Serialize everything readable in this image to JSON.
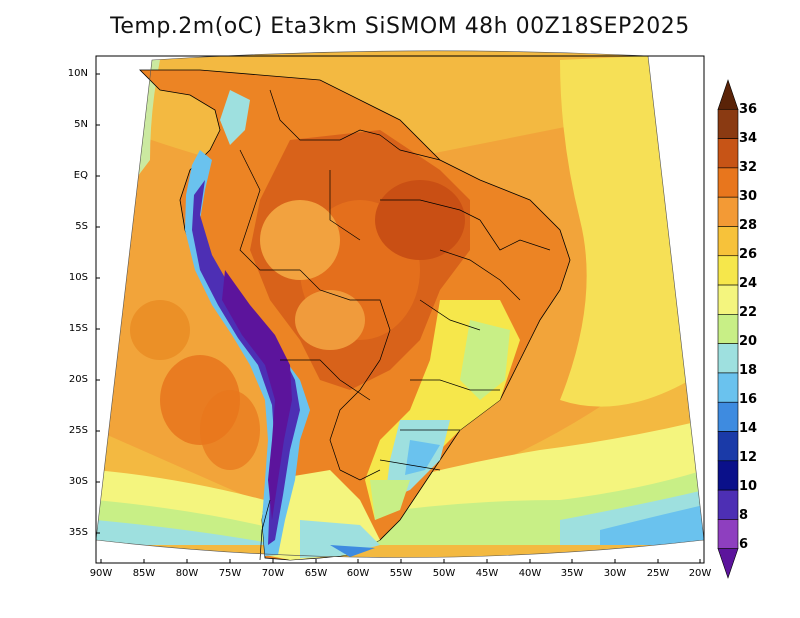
{
  "title": "Temp.2m(oC) Eta3km SiSMOM 48h 00Z18SEP2025",
  "lat_labels": [
    "10N",
    "5N",
    "EQ",
    "5S",
    "10S",
    "15S",
    "20S",
    "25S",
    "30S",
    "35S"
  ],
  "lon_labels": [
    "90W",
    "85W",
    "80W",
    "75W",
    "70W",
    "65W",
    "60W",
    "55W",
    "50W",
    "45W",
    "40W",
    "35W",
    "30W",
    "25W",
    "20W"
  ],
  "colorbar": {
    "unit": "oC",
    "labels": [
      "36",
      "34",
      "32",
      "30",
      "28",
      "26",
      "24",
      "22",
      "20",
      "18",
      "16",
      "14",
      "12",
      "10",
      "8",
      "6"
    ],
    "colors": [
      "#5a2308",
      "#8a3a12",
      "#c75416",
      "#e8761d",
      "#f39a35",
      "#f7c23a",
      "#f6e74b",
      "#f4f57e",
      "#c8ef86",
      "#9ee0df",
      "#6ac2ee",
      "#3e8be0",
      "#1a3aa8",
      "#0a108a",
      "#4d2fb4",
      "#8e3fbf",
      "#5c149c"
    ]
  },
  "map": {
    "region": "South America",
    "variable": "2m temperature",
    "model": "Eta3km SiSMOM",
    "lead": "48h",
    "valid": "00Z18SEP2025"
  }
}
